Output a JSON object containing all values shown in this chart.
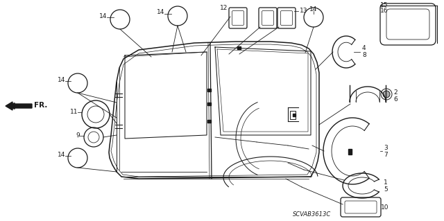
{
  "bg_color": "#ffffff",
  "line_color": "#1a1a1a",
  "diagram_code": "SCVAB3613C",
  "fs": 6.5,
  "lw_body": 1.0,
  "lw_thin": 0.55,
  "lw_leader": 0.6
}
